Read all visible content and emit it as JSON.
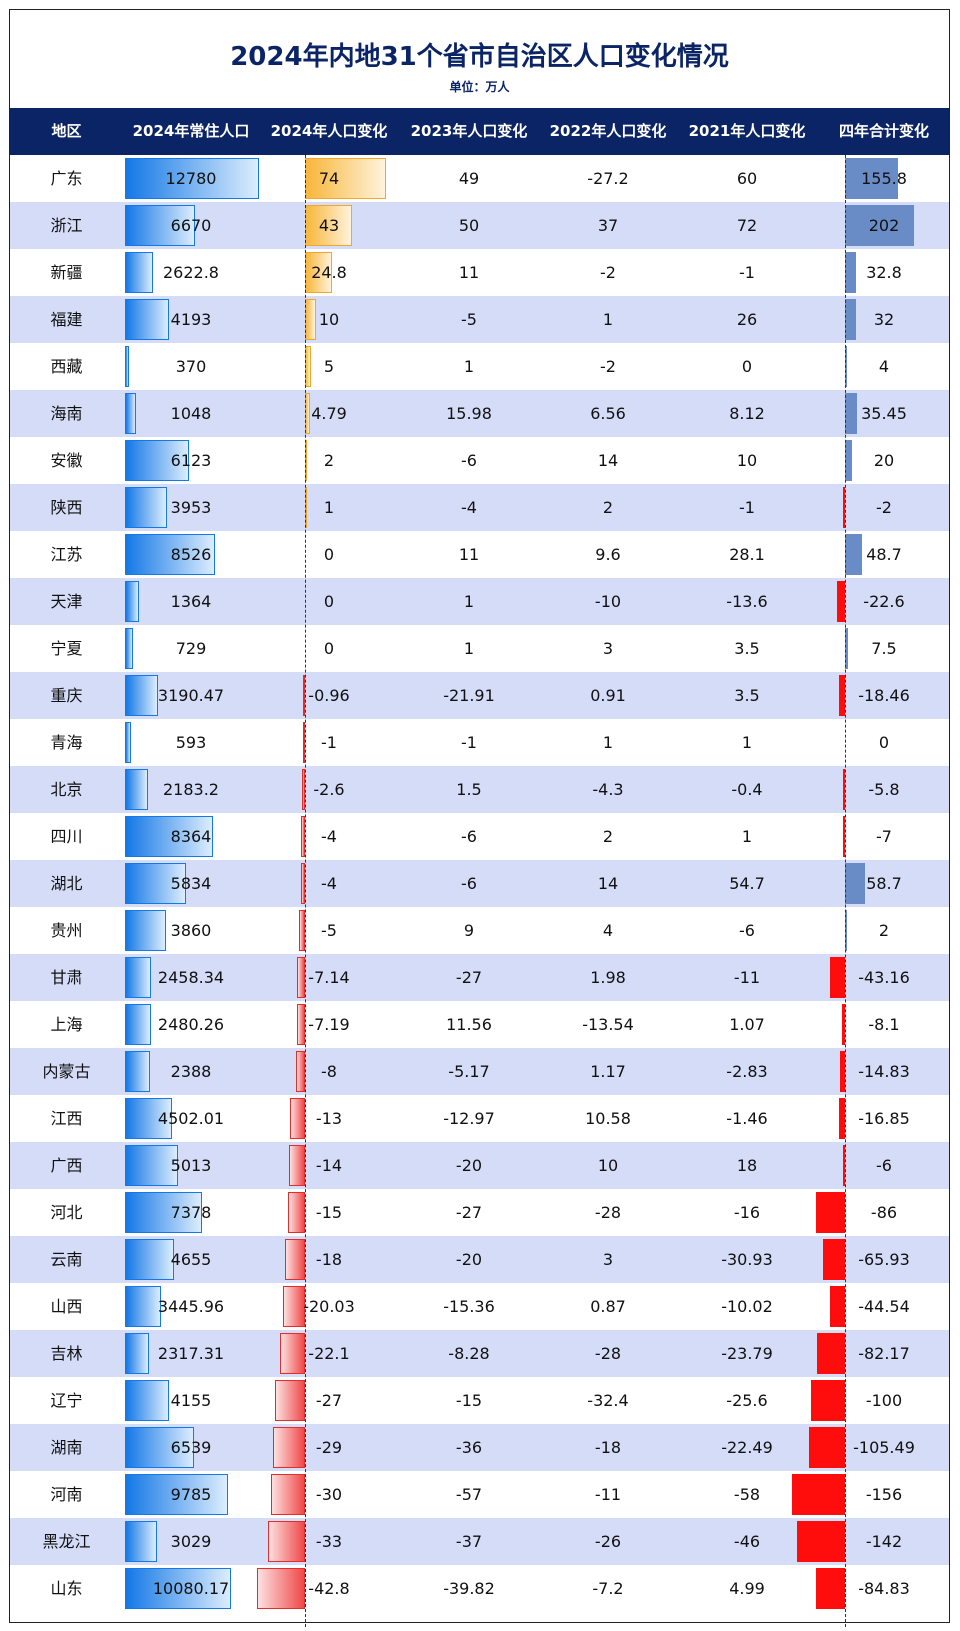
{
  "title": "2024年内地31个省市自治区人口变化情况",
  "subtitle": "单位：万人",
  "headers": [
    "地区",
    "2024年常住人口",
    "2024年人口变化",
    "2023年人口变化",
    "2022年人口变化",
    "2021年人口变化",
    "四年合计变化"
  ],
  "colors": {
    "header_bg": "#0b2466",
    "row_alt": "#d4dcf8",
    "population_bar": "#1478e6",
    "positive_change_bar": "#f7b63a",
    "negative_change_bar": "#f04848",
    "total_positive_bar": "#6a8cc6",
    "total_negative_bar": "#ff0c0c"
  },
  "chart_data": {
    "type": "table",
    "columns": [
      "地区",
      "2024年常住人口",
      "2024年人口变化",
      "2023年人口变化",
      "2022年人口变化",
      "2021年人口变化",
      "四年合计变化"
    ],
    "rows": [
      [
        "广东",
        "12780",
        "74",
        "49",
        "-27.2",
        "60",
        "155.8"
      ],
      [
        "浙江",
        "6670",
        "43",
        "50",
        "37",
        "72",
        "202"
      ],
      [
        "新疆",
        "2622.8",
        "24.8",
        "11",
        "-2",
        "-1",
        "32.8"
      ],
      [
        "福建",
        "4193",
        "10",
        "-5",
        "1",
        "26",
        "32"
      ],
      [
        "西藏",
        "370",
        "5",
        "1",
        "-2",
        "0",
        "4"
      ],
      [
        "海南",
        "1048",
        "4.79",
        "15.98",
        "6.56",
        "8.12",
        "35.45"
      ],
      [
        "安徽",
        "6123",
        "2",
        "-6",
        "14",
        "10",
        "20"
      ],
      [
        "陕西",
        "3953",
        "1",
        "-4",
        "2",
        "-1",
        "-2"
      ],
      [
        "江苏",
        "8526",
        "0",
        "11",
        "9.6",
        "28.1",
        "48.7"
      ],
      [
        "天津",
        "1364",
        "0",
        "1",
        "-10",
        "-13.6",
        "-22.6"
      ],
      [
        "宁夏",
        "729",
        "0",
        "1",
        "3",
        "3.5",
        "7.5"
      ],
      [
        "重庆",
        "3190.47",
        "-0.96",
        "-21.91",
        "0.91",
        "3.5",
        "-18.46"
      ],
      [
        "青海",
        "593",
        "-1",
        "-1",
        "1",
        "1",
        "0"
      ],
      [
        "北京",
        "2183.2",
        "-2.6",
        "1.5",
        "-4.3",
        "-0.4",
        "-5.8"
      ],
      [
        "四川",
        "8364",
        "-4",
        "-6",
        "2",
        "1",
        "-7"
      ],
      [
        "湖北",
        "5834",
        "-4",
        "-6",
        "14",
        "54.7",
        "58.7"
      ],
      [
        "贵州",
        "3860",
        "-5",
        "9",
        "4",
        "-6",
        "2"
      ],
      [
        "甘肃",
        "2458.34",
        "-7.14",
        "-27",
        "1.98",
        "-11",
        "-43.16"
      ],
      [
        "上海",
        "2480.26",
        "-7.19",
        "11.56",
        "-13.54",
        "1.07",
        "-8.1"
      ],
      [
        "内蒙古",
        "2388",
        "-8",
        "-5.17",
        "1.17",
        "-2.83",
        "-14.83"
      ],
      [
        "江西",
        "4502.01",
        "-13",
        "-12.97",
        "10.58",
        "-1.46",
        "-16.85"
      ],
      [
        "广西",
        "5013",
        "-14",
        "-20",
        "10",
        "18",
        "-6"
      ],
      [
        "河北",
        "7378",
        "-15",
        "-27",
        "-28",
        "-16",
        "-86"
      ],
      [
        "云南",
        "4655",
        "-18",
        "-20",
        "3",
        "-30.93",
        "-65.93"
      ],
      [
        "山西",
        "3445.96",
        "-20.03",
        "-15.36",
        "0.87",
        "-10.02",
        "-44.54"
      ],
      [
        "吉林",
        "2317.31",
        "-22.1",
        "-8.28",
        "-28",
        "-23.79",
        "-82.17"
      ],
      [
        "辽宁",
        "4155",
        "-27",
        "-15",
        "-32.4",
        "-25.6",
        "-100"
      ],
      [
        "湖南",
        "6539",
        "-29",
        "-36",
        "-18",
        "-22.49",
        "-105.49"
      ],
      [
        "河南",
        "9785",
        "-30",
        "-57",
        "-11",
        "-58",
        "-156"
      ],
      [
        "黑龙江",
        "3029",
        "-33",
        "-37",
        "-26",
        "-46",
        "-142"
      ],
      [
        "山东",
        "10080.17",
        "-42.8",
        "-39.82",
        "-7.2",
        "4.99",
        "-84.83"
      ]
    ]
  }
}
